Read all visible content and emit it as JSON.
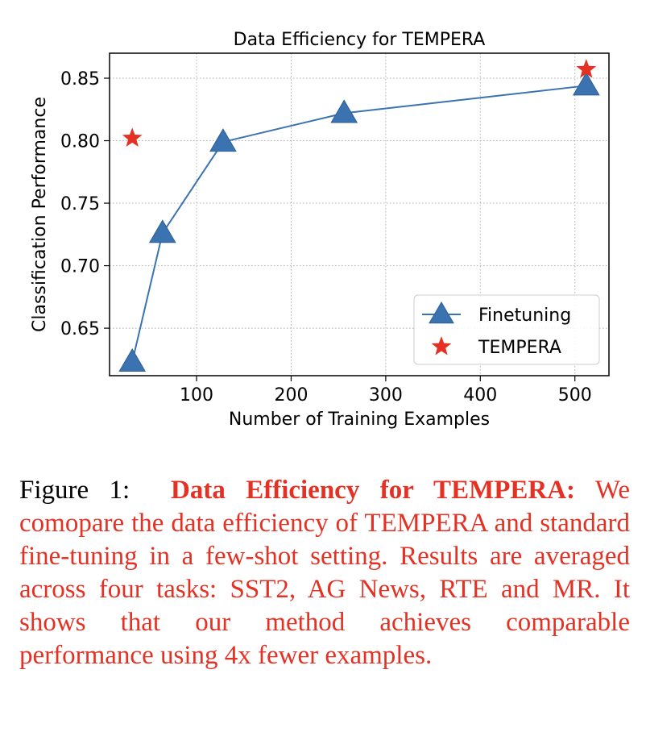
{
  "chart_data": {
    "type": "line",
    "title": "Data Efficiency for TEMPERA",
    "xlabel": "Number of Training Examples",
    "ylabel": "Classification Performance",
    "xlim": [
      8,
      536
    ],
    "ylim": [
      0.612,
      0.87
    ],
    "xticks": [
      100,
      200,
      300,
      400,
      500
    ],
    "yticks": [
      0.65,
      0.7,
      0.75,
      0.8,
      0.85
    ],
    "ytick_labels": [
      "0.65",
      "0.70",
      "0.75",
      "0.80",
      "0.85"
    ],
    "grid": true,
    "legend_position": "lower-right",
    "series": [
      {
        "name": "Finetuning",
        "type": "line",
        "marker": "triangle",
        "color": "#3a73b0",
        "x": [
          32,
          64,
          128,
          256,
          512
        ],
        "y": [
          0.623,
          0.726,
          0.799,
          0.822,
          0.844
        ]
      },
      {
        "name": "TEMPERA",
        "type": "scatter",
        "marker": "star",
        "color": "#e53124",
        "x": [
          32,
          512
        ],
        "y": [
          0.802,
          0.857
        ]
      }
    ]
  },
  "caption": {
    "figure_label": "Figure 1:",
    "bold_title": "Data Efficiency for TEMPERA:",
    "text": "We comopare the data efficiency of TEMPERA and standard fine-tuning in a few-shot setting. Results are averaged across four tasks: SST2, AG News, RTE and MR. It shows that our method achieves comparable performance using 4x fewer examples."
  }
}
